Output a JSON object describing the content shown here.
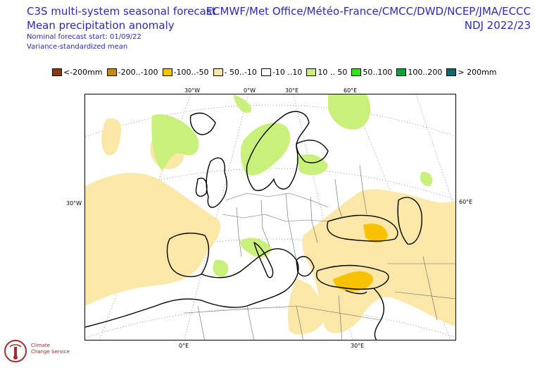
{
  "header": {
    "title_line1": "C3S multi-system seasonal forecast",
    "title_line2": "Mean precipitation anomaly",
    "sub1": "Nominal forecast start: 01/09/22",
    "sub2": "Variance-standardized mean",
    "centres": "ECMWF/Met Office/Météo-France/CMCC/DWD/NCEP/JMA/ECCC",
    "period": "NDJ 2022/23"
  },
  "legend": [
    {
      "label": "<-200mm",
      "color": "#8a3a0a"
    },
    {
      "label": "-200..-100",
      "color": "#c88a14"
    },
    {
      "label": "-100..-50",
      "color": "#f7c200"
    },
    {
      "label": "- 50..-10",
      "color": "#fbe8a8"
    },
    {
      "label": "-10 ..10",
      "color": "#ffffff"
    },
    {
      "label": "10 .. 50",
      "color": "#c8f07a"
    },
    {
      "label": "50..100",
      "color": "#36e01e"
    },
    {
      "label": "100..200",
      "color": "#12a03a"
    },
    {
      "label": "> 200mm",
      "color": "#0c6a6a"
    }
  ],
  "ticks": {
    "top": [
      "30°W",
      "0°W",
      "30°E",
      "60°E"
    ],
    "left": "30°W",
    "right": "60°E",
    "bottom": [
      "0°E",
      "30°E"
    ]
  },
  "logo": {
    "line1": "Climate",
    "line2": "Change Service"
  }
}
